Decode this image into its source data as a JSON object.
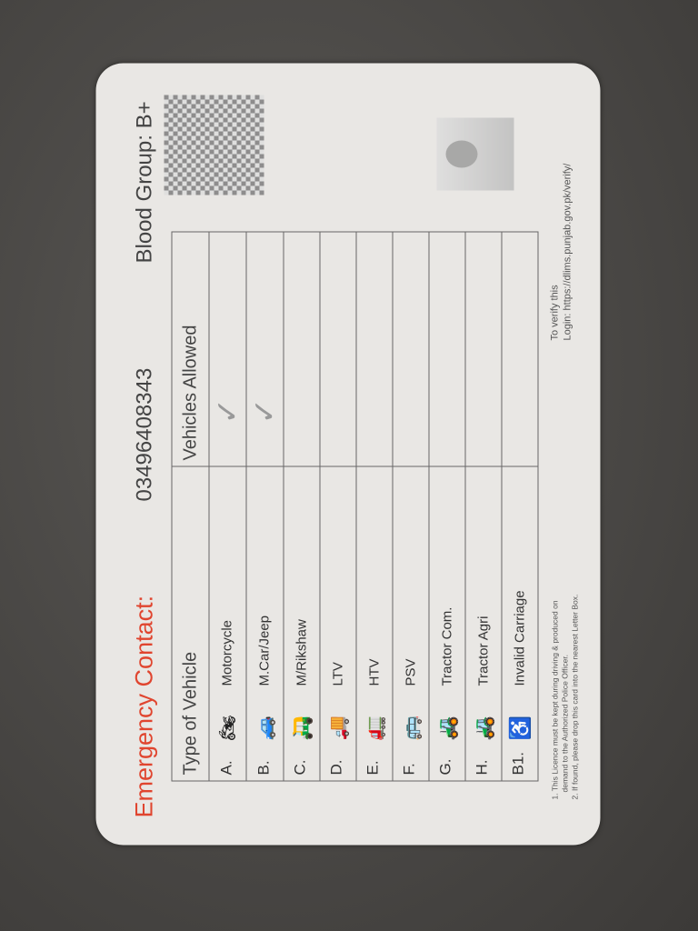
{
  "card": {
    "emergency_label": "Emergency Contact:",
    "emergency_phone": "03496408343",
    "blood_group": "Blood Group: B+",
    "table": {
      "headers": [
        "Type of Vehicle",
        "Vehicles Allowed"
      ],
      "rows": [
        {
          "letter": "A.",
          "icon": "motorcycle-icon",
          "glyph": "🏍",
          "type": "Motorcycle",
          "allowed": true
        },
        {
          "letter": "B.",
          "icon": "car-icon",
          "glyph": "🚙",
          "type": "M.Car/Jeep",
          "allowed": true
        },
        {
          "letter": "C.",
          "icon": "rickshaw-icon",
          "glyph": "🛺",
          "type": "M/Rikshaw",
          "allowed": false
        },
        {
          "letter": "D.",
          "icon": "truck-icon",
          "glyph": "🚚",
          "type": "LTV",
          "allowed": false
        },
        {
          "letter": "E.",
          "icon": "heavy-truck-icon",
          "glyph": "🚛",
          "type": "HTV",
          "allowed": false
        },
        {
          "letter": "F.",
          "icon": "bus-icon",
          "glyph": "🚌",
          "type": "PSV",
          "allowed": false
        },
        {
          "letter": "G.",
          "icon": "tractor-trailer-icon",
          "glyph": "🚜",
          "type": "Tractor Com.",
          "allowed": false
        },
        {
          "letter": "H.",
          "icon": "tractor-icon",
          "glyph": "🚜",
          "type": "Tractor Agri",
          "allowed": false
        },
        {
          "letter": "B1.",
          "icon": "wheelchair-icon",
          "glyph": "♿",
          "type": "Invalid Carriage",
          "allowed": false
        }
      ]
    },
    "verify_line1": "To verify this",
    "verify_line2": "Login: https://dlims.punjab.gov.pk/verify/",
    "note1a": "1. This Licence must be kept during driving & produced on",
    "note1b": "demand to the Authorized Police Officer.",
    "note2": "2. If found, please drop this card into the nearest Letter Box.",
    "check_glyph": "✓"
  }
}
